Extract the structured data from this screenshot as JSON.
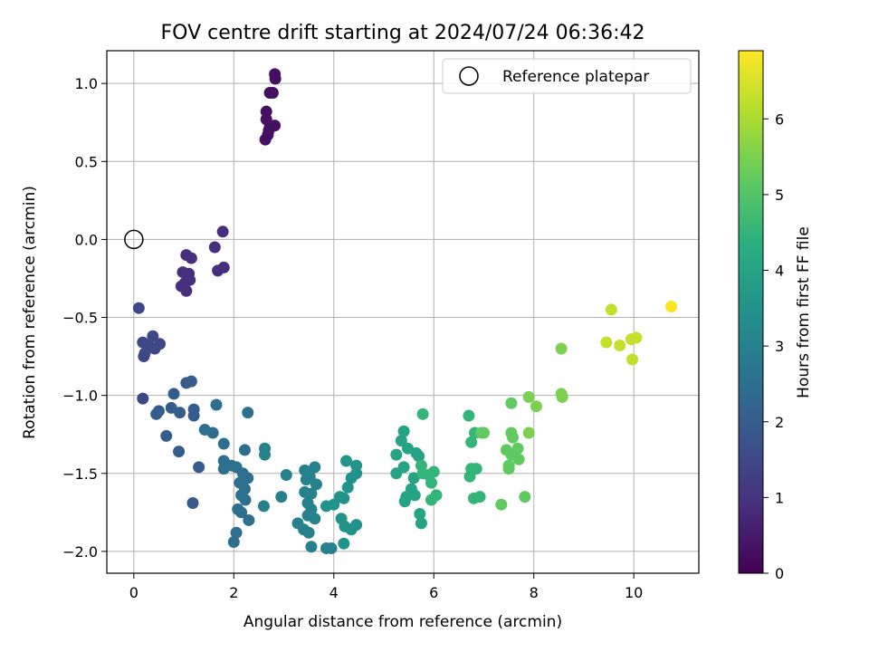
{
  "chart_data": {
    "type": "scatter",
    "title": "FOV centre drift starting at 2024/07/24 06:36:42",
    "xlabel": "Angular distance from reference (arcmin)",
    "ylabel": "Rotation from reference (arcmin)",
    "xlim": [
      -0.54,
      11.3
    ],
    "ylim": [
      -2.14,
      1.21
    ],
    "xticks": [
      0,
      2,
      4,
      6,
      8,
      10
    ],
    "yticks": [
      -2.0,
      -1.5,
      -1.0,
      -0.5,
      0.0,
      0.5,
      1.0
    ],
    "grid": true,
    "legend": {
      "placement": "top-right",
      "entries": [
        "Reference platepar"
      ]
    },
    "reference_point": {
      "x": 0.0,
      "y": 0.0
    },
    "colorbar": {
      "label": "Hours from first FF file",
      "range": [
        0,
        6.9
      ],
      "ticks": [
        0,
        1,
        2,
        3,
        4,
        5,
        6
      ],
      "colormap": "viridis"
    },
    "points": [
      [
        2.82,
        1.06,
        0.3
      ],
      [
        2.83,
        1.03,
        0.3
      ],
      [
        2.78,
        0.94,
        0.3
      ],
      [
        2.72,
        0.94,
        0.3
      ],
      [
        2.82,
        0.73,
        0.3
      ],
      [
        2.65,
        0.82,
        0.3
      ],
      [
        2.65,
        0.77,
        0.3
      ],
      [
        2.72,
        0.72,
        0.3
      ],
      [
        2.68,
        0.67,
        0.3
      ],
      [
        2.63,
        0.64,
        0.3
      ],
      [
        2.7,
        0.7,
        0.3
      ],
      [
        1.78,
        0.05,
        0.9
      ],
      [
        1.62,
        -0.05,
        0.9
      ],
      [
        1.8,
        -0.18,
        0.9
      ],
      [
        1.68,
        -0.2,
        0.9
      ],
      [
        1.05,
        -0.1,
        0.9
      ],
      [
        1.15,
        -0.12,
        0.9
      ],
      [
        0.98,
        -0.21,
        0.9
      ],
      [
        1.1,
        -0.22,
        0.9
      ],
      [
        1.12,
        -0.26,
        0.9
      ],
      [
        0.95,
        -0.3,
        0.9
      ],
      [
        1.05,
        -0.33,
        0.9
      ],
      [
        1.02,
        -0.28,
        0.9
      ],
      [
        0.1,
        -0.44,
        1.5
      ],
      [
        0.18,
        -0.66,
        1.5
      ],
      [
        0.38,
        -0.62,
        1.5
      ],
      [
        0.3,
        -0.68,
        1.5
      ],
      [
        0.52,
        -0.67,
        1.5
      ],
      [
        0.42,
        -0.7,
        1.5
      ],
      [
        0.22,
        -0.73,
        1.5
      ],
      [
        0.2,
        -0.75,
        1.5
      ],
      [
        0.18,
        -1.02,
        1.5
      ],
      [
        0.5,
        -1.1,
        2.0
      ],
      [
        0.45,
        -1.12,
        2.0
      ],
      [
        1.15,
        -0.91,
        2.0
      ],
      [
        1.05,
        -0.92,
        2.0
      ],
      [
        0.8,
        -0.99,
        2.0
      ],
      [
        0.75,
        -1.08,
        2.0
      ],
      [
        0.92,
        -1.11,
        2.0
      ],
      [
        1.2,
        -1.09,
        2.0
      ],
      [
        1.2,
        -1.13,
        2.0
      ],
      [
        0.65,
        -1.26,
        2.0
      ],
      [
        0.9,
        -1.36,
        2.0
      ],
      [
        1.3,
        -1.46,
        2.0
      ],
      [
        1.18,
        -1.69,
        2.0
      ],
      [
        1.65,
        -1.06,
        2.5
      ],
      [
        2.28,
        -1.11,
        2.5
      ],
      [
        1.42,
        -1.22,
        2.5
      ],
      [
        1.58,
        -1.24,
        2.5
      ],
      [
        1.8,
        -1.31,
        2.5
      ],
      [
        2.22,
        -1.35,
        2.5
      ],
      [
        1.8,
        -1.42,
        2.5
      ],
      [
        1.95,
        -1.45,
        2.5
      ],
      [
        2.05,
        -1.46,
        2.5
      ],
      [
        1.8,
        -1.47,
        2.5
      ],
      [
        2.18,
        -1.5,
        2.5
      ],
      [
        2.28,
        -1.53,
        2.5
      ],
      [
        2.12,
        -1.56,
        2.5
      ],
      [
        2.22,
        -1.6,
        2.5
      ],
      [
        2.15,
        -1.64,
        2.5
      ],
      [
        2.23,
        -1.67,
        2.5
      ],
      [
        2.08,
        -1.73,
        2.5
      ],
      [
        2.15,
        -1.75,
        2.5
      ],
      [
        2.3,
        -1.8,
        2.5
      ],
      [
        2.05,
        -1.88,
        2.5
      ],
      [
        2.0,
        -1.94,
        2.5
      ],
      [
        2.62,
        -1.34,
        3.0
      ],
      [
        2.62,
        -1.38,
        3.0
      ],
      [
        2.6,
        -1.71,
        3.0
      ],
      [
        2.95,
        -1.65,
        3.0
      ],
      [
        3.05,
        -1.51,
        3.0
      ],
      [
        3.42,
        -1.48,
        3.0
      ],
      [
        3.52,
        -1.52,
        3.0
      ],
      [
        3.45,
        -1.54,
        3.0
      ],
      [
        3.62,
        -1.46,
        3.0
      ],
      [
        3.65,
        -1.57,
        3.0
      ],
      [
        3.42,
        -1.62,
        3.0
      ],
      [
        3.55,
        -1.63,
        3.0
      ],
      [
        3.48,
        -1.69,
        3.0
      ],
      [
        3.55,
        -1.73,
        3.0
      ],
      [
        3.48,
        -1.77,
        3.0
      ],
      [
        3.62,
        -1.79,
        3.0
      ],
      [
        3.28,
        -1.82,
        3.0
      ],
      [
        3.4,
        -1.86,
        3.0
      ],
      [
        3.5,
        -1.88,
        3.0
      ],
      [
        3.55,
        -1.97,
        3.0
      ],
      [
        3.85,
        -1.98,
        3.0
      ],
      [
        3.95,
        -1.98,
        3.0
      ],
      [
        4.25,
        -1.42,
        3.5
      ],
      [
        4.45,
        -1.45,
        3.5
      ],
      [
        4.45,
        -1.5,
        3.5
      ],
      [
        4.35,
        -1.53,
        3.5
      ],
      [
        4.28,
        -1.59,
        3.5
      ],
      [
        4.12,
        -1.65,
        3.5
      ],
      [
        4.2,
        -1.66,
        3.5
      ],
      [
        4.0,
        -1.7,
        3.5
      ],
      [
        3.85,
        -1.71,
        3.5
      ],
      [
        4.15,
        -1.79,
        3.5
      ],
      [
        4.22,
        -1.84,
        3.5
      ],
      [
        4.45,
        -1.83,
        3.5
      ],
      [
        4.35,
        -1.86,
        3.5
      ],
      [
        4.2,
        -1.95,
        3.5
      ],
      [
        5.4,
        -1.23,
        4.0
      ],
      [
        5.35,
        -1.29,
        4.0
      ],
      [
        5.48,
        -1.34,
        4.0
      ],
      [
        5.25,
        -1.38,
        4.0
      ],
      [
        5.65,
        -1.37,
        4.0
      ],
      [
        5.7,
        -1.39,
        4.0
      ],
      [
        5.4,
        -1.46,
        4.0
      ],
      [
        5.25,
        -1.5,
        4.0
      ],
      [
        5.6,
        -1.53,
        4.0
      ],
      [
        5.55,
        -1.6,
        4.0
      ],
      [
        5.62,
        -1.64,
        4.0
      ],
      [
        5.45,
        -1.65,
        4.0
      ],
      [
        5.42,
        -1.68,
        4.0
      ],
      [
        5.72,
        -1.76,
        4.0
      ],
      [
        5.75,
        -1.82,
        4.0
      ],
      [
        5.78,
        -1.12,
        4.5
      ],
      [
        5.75,
        -1.45,
        4.5
      ],
      [
        5.78,
        -1.5,
        4.5
      ],
      [
        5.9,
        -1.51,
        4.5
      ],
      [
        6.0,
        -1.49,
        4.5
      ],
      [
        5.95,
        -1.56,
        4.5
      ],
      [
        6.05,
        -1.64,
        4.5
      ],
      [
        5.95,
        -1.67,
        4.5
      ],
      [
        6.7,
        -1.13,
        4.5
      ],
      [
        6.75,
        -1.3,
        4.5
      ],
      [
        6.82,
        -1.24,
        4.5
      ],
      [
        6.75,
        -1.47,
        4.5
      ],
      [
        6.85,
        -1.47,
        4.5
      ],
      [
        6.72,
        -1.52,
        4.5
      ],
      [
        6.8,
        -1.66,
        4.5
      ],
      [
        6.92,
        -1.65,
        4.5
      ],
      [
        6.95,
        -1.24,
        5.2
      ],
      [
        7.0,
        -1.24,
        5.2
      ],
      [
        7.55,
        -1.05,
        5.2
      ],
      [
        7.55,
        -1.24,
        5.2
      ],
      [
        7.58,
        -1.27,
        5.2
      ],
      [
        7.45,
        -1.35,
        5.2
      ],
      [
        7.68,
        -1.34,
        5.2
      ],
      [
        7.55,
        -1.38,
        5.2
      ],
      [
        7.5,
        -1.45,
        5.2
      ],
      [
        7.5,
        -1.47,
        5.2
      ],
      [
        7.7,
        -1.41,
        5.2
      ],
      [
        7.35,
        -1.7,
        5.2
      ],
      [
        7.82,
        -1.65,
        5.2
      ],
      [
        7.9,
        -1.01,
        5.5
      ],
      [
        8.05,
        -1.07,
        5.5
      ],
      [
        7.9,
        -1.24,
        5.5
      ],
      [
        8.55,
        -0.7,
        5.5
      ],
      [
        8.55,
        -0.99,
        5.5
      ],
      [
        8.57,
        -1.01,
        5.5
      ],
      [
        9.55,
        -0.45,
        6.3
      ],
      [
        9.45,
        -0.66,
        6.3
      ],
      [
        9.72,
        -0.68,
        6.3
      ],
      [
        9.95,
        -0.64,
        6.3
      ],
      [
        10.05,
        -0.63,
        6.3
      ],
      [
        9.97,
        -0.77,
        6.3
      ],
      [
        10.75,
        -0.43,
        6.85
      ]
    ]
  }
}
